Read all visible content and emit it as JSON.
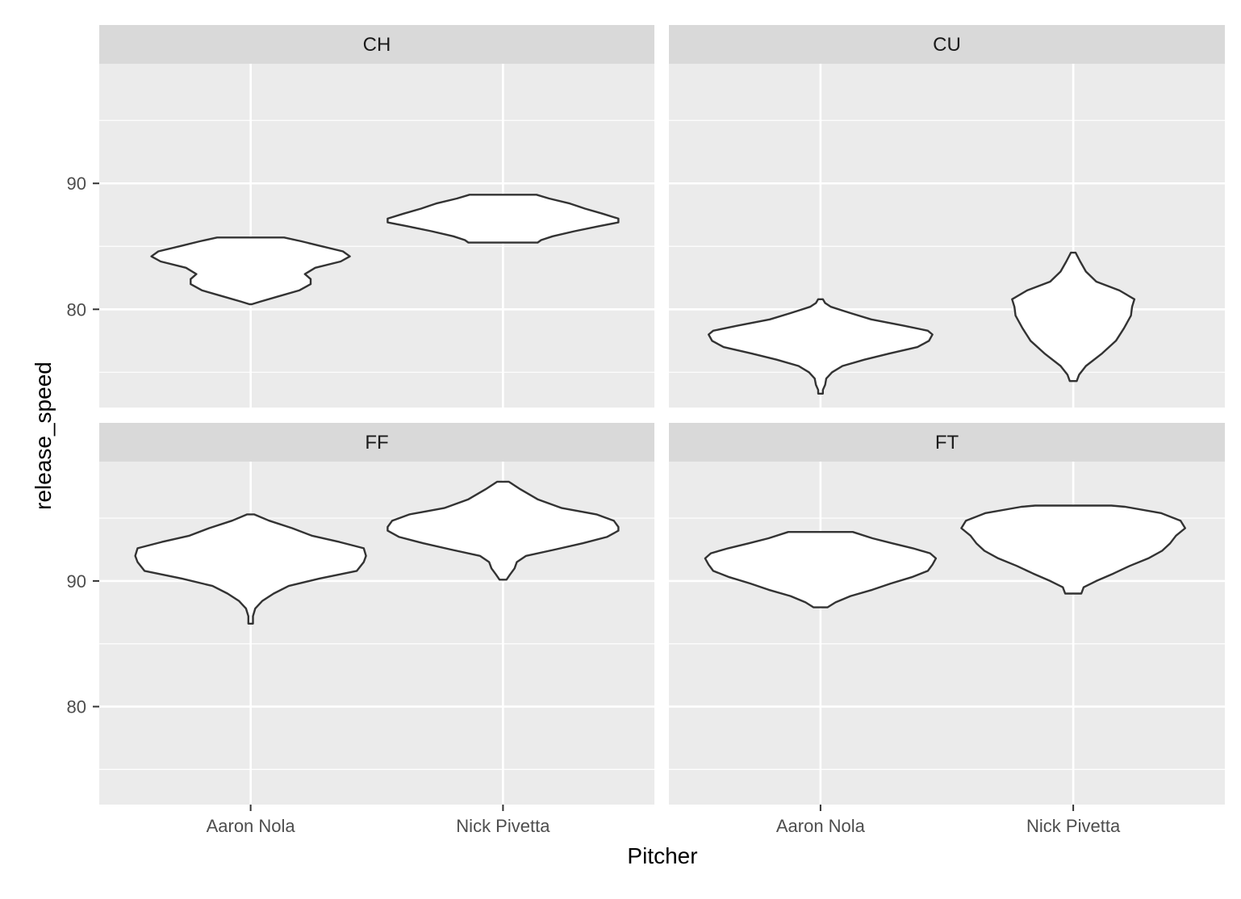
{
  "chart_data": {
    "type": "violin",
    "facets": [
      "CH",
      "CU",
      "FF",
      "FT"
    ],
    "categories": [
      "Aaron Nola",
      "Nick Pivetta"
    ],
    "xlabel": "Pitcher",
    "ylabel": "release_speed",
    "ylim": [
      72.2,
      99.5
    ],
    "yticks": [
      80,
      90
    ],
    "y_tick_labels": [
      "80",
      "90"
    ],
    "grid": true,
    "legend": "none",
    "panels": [
      {
        "facet": "CH",
        "violins": [
          {
            "category": "Aaron Nola",
            "profile": [
              [
                80.4,
                0.01
              ],
              [
                80.6,
                0.08
              ],
              [
                81.0,
                0.23
              ],
              [
                81.5,
                0.42
              ],
              [
                82.0,
                0.52
              ],
              [
                82.4,
                0.52
              ],
              [
                82.8,
                0.47
              ],
              [
                83.3,
                0.56
              ],
              [
                83.8,
                0.78
              ],
              [
                84.2,
                0.86
              ],
              [
                84.6,
                0.8
              ],
              [
                85.0,
                0.62
              ],
              [
                85.4,
                0.44
              ],
              [
                85.7,
                0.29
              ]
            ]
          },
          {
            "category": "Nick Pivetta",
            "profile": [
              [
                85.3,
                0.3
              ],
              [
                85.5,
                0.33
              ],
              [
                85.8,
                0.43
              ],
              [
                86.2,
                0.62
              ],
              [
                86.6,
                0.83
              ],
              [
                86.9,
                1.0
              ],
              [
                87.2,
                1.0
              ],
              [
                87.6,
                0.86
              ],
              [
                88.0,
                0.71
              ],
              [
                88.4,
                0.58
              ],
              [
                88.8,
                0.4
              ],
              [
                89.1,
                0.29
              ]
            ]
          }
        ]
      },
      {
        "facet": "CU",
        "violins": [
          {
            "category": "Aaron Nola",
            "profile": [
              [
                73.3,
                0.02
              ],
              [
                73.6,
                0.02
              ],
              [
                74.0,
                0.04
              ],
              [
                74.5,
                0.05
              ],
              [
                75.0,
                0.1
              ],
              [
                75.5,
                0.19
              ],
              [
                76.0,
                0.38
              ],
              [
                76.5,
                0.6
              ],
              [
                77.0,
                0.84
              ],
              [
                77.5,
                0.94
              ],
              [
                78.0,
                0.97
              ],
              [
                78.3,
                0.93
              ],
              [
                78.7,
                0.72
              ],
              [
                79.2,
                0.44
              ],
              [
                79.7,
                0.26
              ],
              [
                80.2,
                0.09
              ],
              [
                80.5,
                0.04
              ],
              [
                80.8,
                0.02
              ]
            ]
          },
          {
            "category": "Nick Pivetta",
            "profile": [
              [
                74.3,
                0.03
              ],
              [
                74.8,
                0.05
              ],
              [
                75.5,
                0.11
              ],
              [
                76.5,
                0.25
              ],
              [
                77.5,
                0.37
              ],
              [
                78.5,
                0.44
              ],
              [
                79.5,
                0.5
              ],
              [
                80.2,
                0.51
              ],
              [
                80.8,
                0.53
              ],
              [
                81.5,
                0.4
              ],
              [
                82.2,
                0.2
              ],
              [
                83.0,
                0.11
              ],
              [
                83.8,
                0.06
              ],
              [
                84.5,
                0.02
              ]
            ]
          }
        ]
      },
      {
        "facet": "FF",
        "violins": [
          {
            "category": "Aaron Nola",
            "profile": [
              [
                86.6,
                0.02
              ],
              [
                87.2,
                0.02
              ],
              [
                87.8,
                0.04
              ],
              [
                88.4,
                0.1
              ],
              [
                89.0,
                0.2
              ],
              [
                89.6,
                0.33
              ],
              [
                90.2,
                0.6
              ],
              [
                90.8,
                0.92
              ],
              [
                91.5,
                0.98
              ],
              [
                92.0,
                1.0
              ],
              [
                92.6,
                0.98
              ],
              [
                93.1,
                0.77
              ],
              [
                93.6,
                0.53
              ],
              [
                94.2,
                0.36
              ],
              [
                94.8,
                0.16
              ],
              [
                95.3,
                0.03
              ]
            ]
          },
          {
            "category": "Nick Pivetta",
            "profile": [
              [
                90.1,
                0.03
              ],
              [
                90.5,
                0.06
              ],
              [
                91.0,
                0.1
              ],
              [
                91.5,
                0.12
              ],
              [
                92.0,
                0.2
              ],
              [
                92.5,
                0.45
              ],
              [
                93.0,
                0.69
              ],
              [
                93.5,
                0.9
              ],
              [
                94.0,
                1.0
              ],
              [
                94.3,
                1.0
              ],
              [
                94.8,
                0.96
              ],
              [
                95.3,
                0.81
              ],
              [
                95.8,
                0.51
              ],
              [
                96.5,
                0.3
              ],
              [
                97.3,
                0.15
              ],
              [
                97.9,
                0.05
              ]
            ]
          }
        ]
      },
      {
        "facet": "FT",
        "violins": [
          {
            "category": "Aaron Nola",
            "profile": [
              [
                87.9,
                0.06
              ],
              [
                88.3,
                0.13
              ],
              [
                88.8,
                0.26
              ],
              [
                89.3,
                0.45
              ],
              [
                89.8,
                0.61
              ],
              [
                90.3,
                0.79
              ],
              [
                90.8,
                0.93
              ],
              [
                91.3,
                0.97
              ],
              [
                91.8,
                1.0
              ],
              [
                92.2,
                0.95
              ],
              [
                92.6,
                0.8
              ],
              [
                93.0,
                0.62
              ],
              [
                93.4,
                0.45
              ],
              [
                93.9,
                0.28
              ]
            ]
          },
          {
            "category": "Nick Pivetta",
            "profile": [
              [
                89.0,
                0.07
              ],
              [
                89.5,
                0.09
              ],
              [
                90.0,
                0.2
              ],
              [
                90.6,
                0.35
              ],
              [
                91.2,
                0.49
              ],
              [
                91.8,
                0.65
              ],
              [
                92.4,
                0.77
              ],
              [
                93.0,
                0.84
              ],
              [
                93.6,
                0.89
              ],
              [
                94.2,
                0.97
              ],
              [
                94.8,
                0.93
              ],
              [
                95.4,
                0.76
              ],
              [
                95.9,
                0.45
              ],
              [
                96.0,
                0.33
              ]
            ]
          }
        ]
      }
    ]
  }
}
